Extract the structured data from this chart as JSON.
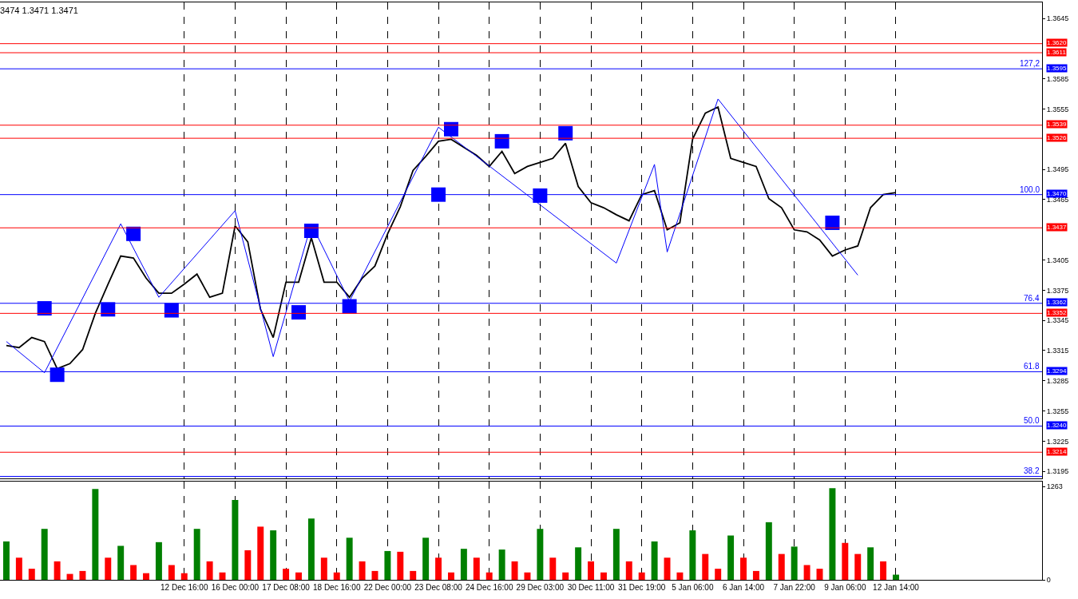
{
  "chart_data": [
    {
      "type": "line",
      "title": "3474 1.3471 1.3471",
      "marker": "none",
      "grid": "x",
      "tick_labels": "y",
      "categories": [
        null,
        null,
        null,
        null,
        null,
        null,
        null,
        null,
        null,
        null,
        null,
        null,
        null,
        null,
        null,
        null,
        null,
        null,
        null,
        null,
        null,
        null,
        null,
        null,
        null,
        null,
        null,
        null,
        null,
        null,
        null,
        null,
        null,
        null,
        null,
        null,
        null,
        null,
        null,
        null,
        null,
        null,
        null,
        null,
        null,
        null,
        null,
        null,
        null,
        null,
        null,
        null,
        null,
        null,
        null,
        null,
        null,
        null,
        null,
        null,
        null,
        null,
        null,
        null,
        null,
        null,
        null,
        null,
        null,
        null,
        null,
        null,
        null,
        null,
        null,
        null,
        null,
        null,
        null,
        null,
        null,
        null
      ],
      "series": [
        {
          "color": "#000000",
          "values": [
            1.332,
            1.3318,
            1.3328,
            1.3324,
            1.3297,
            1.3302,
            1.3316,
            1.3352,
            1.3381,
            1.3409,
            1.3407,
            1.3387,
            1.3372,
            1.3372,
            1.3381,
            1.3391,
            1.3368,
            1.3372,
            1.3439,
            1.3423,
            1.3356,
            1.3328,
            1.3383,
            1.3383,
            1.3427,
            1.3383,
            1.3383,
            1.3368,
            1.3387,
            1.3399,
            1.3431,
            1.3458,
            1.3494,
            1.3508,
            1.3523,
            1.3525,
            1.3517,
            1.3509,
            1.3498,
            1.3513,
            1.3491,
            1.3498,
            1.3502,
            1.3506,
            1.3521,
            1.3478,
            1.3462,
            1.3457,
            1.345,
            1.3444,
            1.347,
            1.3474,
            1.3435,
            1.3442,
            1.3525,
            1.3551,
            1.3557,
            1.3506,
            1.3502,
            1.3498,
            1.3466,
            1.3457,
            1.3435,
            1.3433,
            1.3425,
            1.3409,
            1.3415,
            1.3419,
            1.3457,
            1.347,
            1.3472,
            null,
            null,
            null,
            null,
            null,
            null,
            null,
            null,
            null,
            null,
            null
          ]
        },
        {
          "color": "#0000ff",
          "values": [
            1.3324,
            null,
            null,
            1.3293,
            null,
            null,
            null,
            null,
            null,
            1.3441,
            null,
            null,
            1.3368,
            null,
            null,
            null,
            null,
            null,
            1.3454,
            null,
            null,
            1.3309,
            null,
            null,
            1.3441,
            null,
            null,
            1.3364,
            null,
            null,
            null,
            null,
            null,
            null,
            1.3537,
            null,
            null,
            null,
            null,
            null,
            null,
            null,
            null,
            null,
            null,
            null,
            null,
            null,
            1.3402,
            null,
            null,
            1.35,
            1.3413,
            null,
            null,
            null,
            1.3565,
            null,
            null,
            null,
            null,
            null,
            null,
            null,
            null,
            null,
            null,
            1.339,
            null,
            null,
            null,
            null,
            null,
            null,
            null,
            null,
            null,
            null,
            null,
            null,
            null,
            null
          ]
        },
        {
          "type": "scatter",
          "marker": "square",
          "color": "#0000ff",
          "values": [
            null,
            null,
            null,
            1.3357,
            1.3291,
            null,
            null,
            null,
            1.3356,
            null,
            1.3431,
            null,
            null,
            1.3355,
            null,
            null,
            null,
            null,
            null,
            null,
            null,
            null,
            null,
            1.3353,
            1.3434,
            null,
            null,
            1.3359,
            null,
            null,
            null,
            null,
            null,
            null,
            1.347,
            1.3535,
            null,
            null,
            null,
            1.3523,
            null,
            null,
            1.3469,
            null,
            1.3531,
            null,
            null,
            null,
            null,
            null,
            null,
            null,
            null,
            null,
            null,
            null,
            null,
            null,
            null,
            null,
            null,
            null,
            null,
            null,
            null,
            1.3442,
            null,
            null,
            null,
            null,
            null,
            null,
            null,
            null,
            null,
            null,
            null,
            null,
            null,
            null,
            null,
            null
          ]
        }
      ],
      "ylim": [
        1.3188,
        1.3661
      ],
      "yticks": [
        1.3195,
        1.3225,
        1.3255,
        1.3285,
        1.3315,
        1.3345,
        1.3375,
        1.3405,
        1.3465,
        1.3495,
        1.3555,
        1.3585,
        1.3645
      ],
      "ref_lines": [
        {
          "axis": "y",
          "value": 1.362,
          "label": "1.3620",
          "color": "#ff0000"
        },
        {
          "axis": "y",
          "value": 1.3611,
          "label": "1.3611",
          "color": "#ff0000"
        },
        {
          "axis": "y",
          "value": 1.3595,
          "label": "1.3595",
          "color": "#0000ff"
        },
        {
          "axis": "y",
          "value": 1.3539,
          "label": "1.3539",
          "color": "#ff0000"
        },
        {
          "axis": "y",
          "value": 1.3526,
          "label": "1.3526",
          "color": "#ff0000"
        },
        {
          "axis": "y",
          "value": 1.347,
          "label": "1.3470",
          "color": "#0000ff"
        },
        {
          "axis": "y",
          "value": 1.3437,
          "label": "1.3437",
          "color": "#ff0000"
        },
        {
          "axis": "y",
          "value": 1.3362,
          "label": "1.3362",
          "color": "#0000ff"
        },
        {
          "axis": "y",
          "value": 1.3352,
          "label": "1.3352",
          "color": "#ff0000"
        },
        {
          "axis": "y",
          "value": 1.3294,
          "label": "1.3294",
          "color": "#0000ff"
        },
        {
          "axis": "y",
          "value": 1.324,
          "label": "1.3240",
          "color": "#0000ff"
        },
        {
          "axis": "y",
          "value": 1.3214,
          "label": "1.3214",
          "color": "#ff0000"
        },
        {
          "axis": "y",
          "value": 1.319,
          "label": null,
          "color": "#0000ff"
        }
      ],
      "annotations": [
        {
          "text": "127,2",
          "y": 1.3595
        },
        {
          "text": "100.0",
          "y": 1.347
        },
        {
          "text": "76.4",
          "y": 1.3362
        },
        {
          "text": "61.8",
          "y": 1.3294
        },
        {
          "text": "50.0",
          "y": 1.324
        },
        {
          "text": "38.2",
          "y": 1.319
        }
      ]
    },
    {
      "type": "bar",
      "grid": "x",
      "categories": [
        null,
        null,
        null,
        null,
        null,
        null,
        null,
        null,
        null,
        null,
        null,
        null,
        null,
        null,
        "12 Dec 16:00",
        null,
        null,
        null,
        "16 Dec 00:00",
        null,
        null,
        null,
        "17 Dec 08:00",
        null,
        null,
        null,
        "18 Dec 16:00",
        null,
        null,
        null,
        "22 Dec 00:00",
        null,
        null,
        null,
        "23 Dec 08:00",
        null,
        null,
        null,
        "24 Dec 16:00",
        null,
        null,
        null,
        "29 Dec 03:00",
        null,
        null,
        null,
        "30 Dec 11:00",
        null,
        null,
        null,
        "31 Dec 19:00",
        null,
        null,
        null,
        "5 Jan 06:00",
        null,
        null,
        null,
        "6 Jan 14:00",
        null,
        null,
        null,
        "7 Jan 22:00",
        null,
        null,
        null,
        "9 Jan 06:00",
        null,
        null,
        null,
        "12 Jan 14:00",
        null,
        null,
        null,
        null,
        null,
        null,
        null,
        null,
        null,
        null,
        null
      ],
      "values": [
        520,
        300,
        150,
        690,
        250,
        80,
        120,
        1230,
        300,
        460,
        200,
        90,
        510,
        200,
        90,
        690,
        250,
        100,
        1080,
        400,
        720,
        670,
        150,
        100,
        830,
        300,
        100,
        570,
        250,
        120,
        390,
        380,
        120,
        570,
        300,
        100,
        420,
        300,
        100,
        410,
        250,
        100,
        690,
        300,
        100,
        440,
        250,
        100,
        690,
        250,
        100,
        520,
        300,
        100,
        670,
        350,
        150,
        600,
        300,
        120,
        780,
        350,
        450,
        200,
        150,
        1240,
        500,
        350,
        440,
        250,
        70,
        null,
        null,
        null,
        null,
        null,
        null,
        null,
        null,
        null,
        null,
        null
      ],
      "colors": [
        "#008000",
        "#ff0000",
        "#ff0000",
        "#008000",
        "#ff0000",
        "#ff0000",
        "#ff0000",
        "#008000",
        "#ff0000",
        "#008000",
        "#ff0000",
        "#ff0000",
        "#008000",
        "#ff0000",
        "#ff0000",
        "#008000",
        "#ff0000",
        "#ff0000",
        "#008000",
        "#ff0000",
        "#ff0000",
        "#008000",
        "#ff0000",
        "#ff0000",
        "#008000",
        "#ff0000",
        "#ff0000",
        "#008000",
        "#ff0000",
        "#ff0000",
        "#008000",
        "#ff0000",
        "#ff0000",
        "#008000",
        "#ff0000",
        "#ff0000",
        "#008000",
        "#ff0000",
        "#ff0000",
        "#008000",
        "#ff0000",
        "#ff0000",
        "#008000",
        "#ff0000",
        "#ff0000",
        "#008000",
        "#ff0000",
        "#ff0000",
        "#008000",
        "#ff0000",
        "#ff0000",
        "#008000",
        "#ff0000",
        "#ff0000",
        "#008000",
        "#ff0000",
        "#ff0000",
        "#008000",
        "#ff0000",
        "#ff0000",
        "#008000",
        "#ff0000",
        "#008000",
        "#ff0000",
        "#ff0000",
        "#008000",
        "#ff0000",
        "#ff0000",
        "#008000",
        "#ff0000",
        "#008000",
        "#008000",
        "#008000",
        "#008000",
        "#008000",
        "#008000",
        "#008000",
        "#008000",
        "#008000",
        "#008000",
        "#008000",
        "#008000"
      ],
      "ylim": [
        0,
        1330
      ],
      "yticks": [
        0,
        1263
      ]
    }
  ]
}
